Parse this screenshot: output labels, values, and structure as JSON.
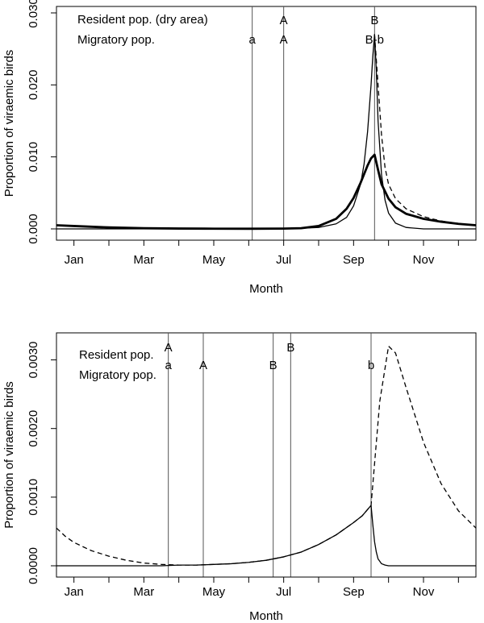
{
  "chart_data": [
    {
      "type": "line",
      "xlabel": "Month",
      "ylabel": "Proportion of viraemic birds",
      "xlim": [
        0.5,
        12.5
      ],
      "ylim": [
        0,
        0.03
      ],
      "x_ticks": [
        {
          "value": 1,
          "label": "Jan"
        },
        {
          "value": 3,
          "label": "Mar"
        },
        {
          "value": 5,
          "label": "May"
        },
        {
          "value": 7,
          "label": "Jul"
        },
        {
          "value": 9,
          "label": "Sep"
        },
        {
          "value": 11,
          "label": "Nov"
        }
      ],
      "y_ticks": [
        {
          "value": 0,
          "label": "0.000"
        },
        {
          "value": 0.01,
          "label": "0.010"
        },
        {
          "value": 0.02,
          "label": "0.020"
        },
        {
          "value": 0.03,
          "label": "0.030"
        }
      ],
      "legend": [
        {
          "label": "Resident pop. (dry area)"
        },
        {
          "label": "Migratory pop."
        }
      ],
      "vertical_lines": [
        {
          "x": 6.1,
          "top": "",
          "bottom": "a"
        },
        {
          "x": 7.0,
          "top": "A",
          "bottom": "A"
        },
        {
          "x": 9.6,
          "top": "B",
          "bottom": "B-b"
        }
      ],
      "series": [
        {
          "name": "thin solid",
          "style": "solid",
          "width": 1.3,
          "x": [
            0.5,
            1,
            2,
            3,
            4,
            5,
            6,
            7,
            8,
            8.5,
            8.8,
            9.0,
            9.2,
            9.3,
            9.4,
            9.5,
            9.55,
            9.6,
            9.65,
            9.7,
            9.8,
            9.9,
            10.0,
            10.2,
            10.5,
            11,
            11.5,
            12,
            12.5
          ],
          "values": [
            0,
            0,
            0,
            0,
            0,
            0,
            0,
            0,
            0.0002,
            0.0007,
            0.0016,
            0.0032,
            0.0062,
            0.009,
            0.0135,
            0.02,
            0.024,
            0.027,
            0.022,
            0.015,
            0.0075,
            0.004,
            0.0022,
            0.0008,
            0.0002,
            0,
            0,
            0,
            0
          ]
        },
        {
          "name": "dashed",
          "style": "dashed",
          "width": 1.3,
          "x": [
            9.6,
            9.7,
            9.8,
            9.9,
            10.0,
            10.2,
            10.5,
            11,
            11.5,
            12,
            12.5
          ],
          "values": [
            0.027,
            0.02,
            0.013,
            0.0085,
            0.0062,
            0.0042,
            0.0028,
            0.0017,
            0.0011,
            0.00075,
            0.0005
          ]
        },
        {
          "name": "thick solid",
          "style": "solid",
          "width": 2.8,
          "x": [
            0.5,
            1,
            2,
            3,
            4,
            5,
            6,
            7,
            7.5,
            8,
            8.5,
            8.8,
            9.0,
            9.2,
            9.4,
            9.5,
            9.6,
            9.7,
            9.8,
            10.0,
            10.2,
            10.5,
            11,
            11.5,
            12,
            12.5
          ],
          "values": [
            0.0005,
            0.0004,
            0.0002,
            0.0001,
            5e-05,
            3e-05,
            2e-05,
            4e-05,
            0.0001,
            0.0004,
            0.0014,
            0.0028,
            0.0043,
            0.0064,
            0.0088,
            0.0098,
            0.0103,
            0.0082,
            0.0062,
            0.0042,
            0.003,
            0.0021,
            0.0014,
            0.001,
            0.0007,
            0.0005
          ]
        }
      ]
    },
    {
      "type": "line",
      "xlabel": "Month",
      "ylabel": "Proportion of viraemic birds",
      "xlim": [
        0.5,
        12.5
      ],
      "ylim": [
        0,
        0.0033
      ],
      "x_ticks": [
        {
          "value": 1,
          "label": "Jan"
        },
        {
          "value": 3,
          "label": "Mar"
        },
        {
          "value": 5,
          "label": "May"
        },
        {
          "value": 7,
          "label": "Jul"
        },
        {
          "value": 9,
          "label": "Sep"
        },
        {
          "value": 11,
          "label": "Nov"
        }
      ],
      "y_ticks": [
        {
          "value": 0,
          "label": "0.0000"
        },
        {
          "value": 0.001,
          "label": "0.0010"
        },
        {
          "value": 0.002,
          "label": "0.0020"
        },
        {
          "value": 0.003,
          "label": "0.0030"
        }
      ],
      "legend": [
        {
          "label": "Resident pop."
        },
        {
          "label": "Migratory pop."
        }
      ],
      "vertical_lines": [
        {
          "x": 3.7,
          "top": "A",
          "bottom": "a"
        },
        {
          "x": 4.7,
          "top": "",
          "bottom": "A"
        },
        {
          "x": 6.7,
          "top": "",
          "bottom": "B"
        },
        {
          "x": 7.2,
          "top": "B",
          "bottom": ""
        },
        {
          "x": 9.5,
          "top": "",
          "bottom": "b"
        }
      ],
      "series": [
        {
          "name": "dashed",
          "style": "dashed",
          "width": 1.3,
          "x": [
            0.5,
            0.75,
            1,
            1.5,
            2,
            2.5,
            3,
            3.5,
            4,
            4.5,
            5,
            5.5,
            6,
            6.5,
            7,
            7.5,
            8,
            8.5,
            9,
            9.25,
            9.5,
            9.75,
            10.0,
            10.2,
            10.5,
            11,
            11.5,
            12,
            12.5
          ],
          "values": [
            0.00055,
            0.00043,
            0.00034,
            0.00022,
            0.00014,
            8e-05,
            4e-05,
            2e-05,
            1e-05,
            1e-05,
            2e-05,
            3e-05,
            5e-05,
            8e-05,
            0.00013,
            0.0002,
            0.00031,
            0.00045,
            0.00063,
            0.00073,
            0.00088,
            0.0024,
            0.0032,
            0.0031,
            0.0026,
            0.0018,
            0.0012,
            0.0008,
            0.00055
          ]
        },
        {
          "name": "solid",
          "style": "solid",
          "width": 1.3,
          "x": [
            0.5,
            2,
            3,
            3.5,
            4,
            4.5,
            5,
            5.5,
            6,
            6.5,
            7,
            7.5,
            8,
            8.5,
            9,
            9.25,
            9.5,
            9.55,
            9.6,
            9.65,
            9.7,
            9.8,
            9.9,
            10,
            11,
            12,
            12.5
          ],
          "values": [
            0,
            0,
            0,
            0,
            1e-05,
            1e-05,
            2e-05,
            3e-05,
            5e-05,
            8e-05,
            0.00013,
            0.0002,
            0.00031,
            0.00045,
            0.00063,
            0.00073,
            0.00088,
            0.0006,
            0.00035,
            0.0002,
            0.0001,
            3e-05,
            1e-05,
            0,
            0,
            0,
            0
          ]
        }
      ]
    }
  ]
}
